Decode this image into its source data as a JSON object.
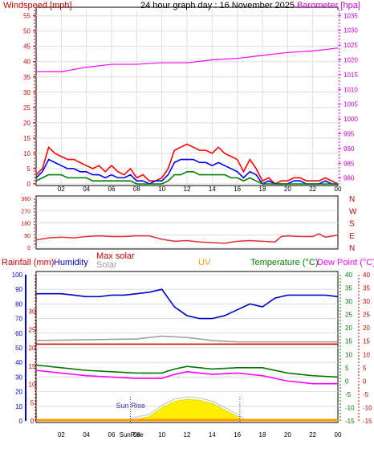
{
  "header": {
    "left": "Windspeed [mph]",
    "title": "24 hour graph day : 16 November 2025",
    "right": "Barometer [hpa]"
  },
  "colors": {
    "wind": "#ff0000",
    "gust": "#0000ff",
    "avg": "#008000",
    "baro": "#ff00ff",
    "dir": "#e03030",
    "humidity": "#0000cc",
    "rain": "#cc0000",
    "solar": "#a0a0a0",
    "uv": "#ff9900",
    "temp": "#007700",
    "dew": "#ff00ff",
    "maxsolar": "#c00000"
  },
  "legend2": {
    "rain": "Rainfall (mm)",
    "humidity": "Humidity",
    "maxsolar": "Max solar",
    "solar": "Solar",
    "uv": "UV",
    "temp": "Temperature (°C)",
    "dew": "Dew Point (°C)"
  },
  "dir_labels": [
    "N",
    "W",
    "S",
    "E",
    "N"
  ],
  "sunrise_label": "Sun Rise",
  "sunrise_bottom_label": "SunRise",
  "chart_data": [
    {
      "type": "line",
      "x_ticks": [
        "02",
        "04",
        "06",
        "08",
        "10",
        "12",
        "14",
        "16",
        "18",
        "20",
        "22",
        "00"
      ],
      "y_left_ticks": [
        0,
        5,
        10,
        15,
        20,
        25,
        30,
        35,
        40,
        45,
        50,
        55
      ],
      "y_left_lim": [
        0,
        57
      ],
      "y_right_ticks": [
        980,
        985,
        990,
        995,
        1000,
        1005,
        1010,
        1015,
        1020,
        1025,
        1030,
        1035
      ],
      "y_right_lim": [
        978,
        1037
      ],
      "series": [
        {
          "key": "baro",
          "x": [
            0,
            2,
            4,
            6,
            8,
            10,
            12,
            14,
            16,
            18,
            20,
            22,
            24
          ],
          "y": [
            1016,
            1016,
            1017.5,
            1018.5,
            1018.5,
            1019,
            1019,
            1020,
            1020.5,
            1021.5,
            1022.5,
            1023,
            1024
          ]
        },
        {
          "key": "wind",
          "x": [
            0,
            0.5,
            1,
            1.5,
            2,
            2.5,
            3,
            3.5,
            4,
            4.5,
            5,
            5.5,
            6,
            6.5,
            7,
            7.5,
            8,
            8.5,
            9,
            9.5,
            10,
            10.5,
            11,
            11.5,
            12,
            12.5,
            13,
            13.5,
            14,
            14.5,
            15,
            15.5,
            16,
            16.5,
            17,
            17.5,
            18,
            18.5,
            19,
            19.5,
            20,
            20.5,
            21,
            21.5,
            22,
            22.5,
            23,
            23.5,
            24
          ],
          "y": [
            3,
            5,
            12,
            10,
            9,
            8,
            8,
            7,
            6,
            5,
            6,
            4,
            6,
            4,
            3,
            5,
            2,
            3,
            1,
            1,
            2,
            5,
            11,
            12,
            13,
            12,
            11,
            11,
            10,
            12,
            10,
            9,
            8,
            4,
            8,
            5,
            1,
            2,
            0,
            1,
            1,
            2,
            2,
            1,
            1,
            1,
            2,
            1,
            0
          ]
        },
        {
          "key": "gust",
          "x": [
            0,
            0.5,
            1,
            1.5,
            2,
            2.5,
            3,
            3.5,
            4,
            4.5,
            5,
            5.5,
            6,
            6.5,
            7,
            7.5,
            8,
            8.5,
            9,
            9.5,
            10,
            10.5,
            11,
            11.5,
            12,
            12.5,
            13,
            13.5,
            14,
            14.5,
            15,
            15.5,
            16,
            16.5,
            17,
            17.5,
            18,
            18.5,
            19,
            19.5,
            20,
            20.5,
            21,
            21.5,
            22,
            22.5,
            23,
            23.5,
            24
          ],
          "y": [
            2,
            4,
            8,
            7,
            6,
            5,
            5,
            4,
            4,
            3,
            3,
            2,
            3,
            2,
            2,
            3,
            1,
            1,
            0,
            1,
            1,
            3,
            7,
            8,
            8,
            8,
            7,
            7,
            6,
            7,
            6,
            5,
            4,
            2,
            4,
            3,
            0,
            1,
            0,
            0,
            0,
            1,
            1,
            0,
            0,
            0,
            1,
            0,
            0
          ]
        },
        {
          "key": "avg",
          "x": [
            0,
            0.5,
            1,
            1.5,
            2,
            2.5,
            3,
            3.5,
            4,
            4.5,
            5,
            5.5,
            6,
            6.5,
            7,
            7.5,
            8,
            8.5,
            9,
            9.5,
            10,
            10.5,
            11,
            11.5,
            12,
            12.5,
            13,
            13.5,
            14,
            14.5,
            15,
            15.5,
            16,
            16.5,
            17,
            17.5,
            18,
            18.5,
            19,
            19.5,
            20,
            20.5,
            21,
            21.5,
            22,
            22.5,
            23,
            23.5,
            24
          ],
          "y": [
            1,
            2,
            3,
            3,
            3,
            2,
            2,
            2,
            2,
            1,
            1,
            1,
            1,
            1,
            1,
            1,
            0,
            0,
            0,
            0,
            0,
            1,
            3,
            3,
            4,
            4,
            3,
            3,
            3,
            3,
            3,
            2,
            2,
            1,
            2,
            1,
            0,
            0,
            0,
            0,
            0,
            0,
            0,
            0,
            0,
            0,
            0,
            0,
            0
          ]
        }
      ]
    },
    {
      "type": "line",
      "y_ticks": [
        0,
        90,
        180,
        270,
        360
      ],
      "y_lim": [
        0,
        360
      ],
      "series": [
        {
          "key": "dir",
          "x": [
            0,
            1,
            2,
            3,
            4,
            5,
            6,
            7,
            8,
            9,
            10,
            11,
            12,
            13,
            14,
            15,
            16,
            17,
            18,
            19,
            19.5,
            20,
            21,
            22,
            22.5,
            23,
            24
          ],
          "y": [
            55,
            70,
            75,
            70,
            80,
            85,
            80,
            80,
            85,
            85,
            60,
            45,
            50,
            40,
            35,
            30,
            45,
            50,
            45,
            40,
            80,
            85,
            80,
            80,
            100,
            75,
            90
          ]
        }
      ]
    },
    {
      "type": "line",
      "y_hum_ticks": [
        0,
        10,
        20,
        30,
        40,
        50,
        60,
        70,
        80,
        90,
        100
      ],
      "y_rain_ticks": [
        0,
        5,
        10,
        15,
        20,
        25,
        30
      ],
      "y_temp_ticks": [
        -15,
        -10,
        -5,
        0,
        5,
        10,
        15,
        20,
        25,
        30,
        35,
        40
      ],
      "y_temp_lim": [
        -15,
        40
      ],
      "series": [
        {
          "key": "humidity",
          "axis": "hum",
          "x": [
            0,
            1,
            2,
            3,
            4,
            5,
            6,
            7,
            8,
            9,
            10,
            11,
            12,
            13,
            14,
            15,
            16,
            17,
            18,
            19,
            20,
            21,
            22,
            23,
            24
          ],
          "y": [
            87,
            87,
            87,
            86,
            85,
            85,
            86,
            86,
            87,
            88,
            90,
            78,
            72,
            70,
            70,
            72,
            76,
            80,
            78,
            84,
            86,
            86,
            86,
            86,
            85
          ]
        },
        {
          "key": "rain",
          "axis": "rain",
          "x": [
            0,
            24
          ],
          "y": [
            21,
            21
          ]
        },
        {
          "key": "solar",
          "axis": "hum",
          "x": [
            0,
            8,
            9,
            10,
            12,
            14,
            16,
            18,
            20,
            22,
            24
          ],
          "y": [
            55,
            56,
            57,
            58,
            57,
            55,
            54,
            54,
            54,
            54,
            54
          ]
        },
        {
          "key": "temp",
          "axis": "temp",
          "x": [
            0,
            2,
            4,
            6,
            8,
            10,
            11,
            12,
            13,
            14,
            16,
            18,
            20,
            22,
            24
          ],
          "y": [
            6,
            5,
            4,
            3.5,
            3,
            3,
            4.5,
            5.5,
            5,
            4.5,
            5,
            5,
            3,
            2,
            1.5
          ]
        },
        {
          "key": "dew",
          "axis": "temp",
          "x": [
            0,
            2,
            4,
            6,
            8,
            10,
            11,
            12,
            13,
            14,
            16,
            18,
            20,
            22,
            24
          ],
          "y": [
            4,
            3,
            2,
            1.5,
            1,
            1,
            2.5,
            3.5,
            3,
            2.5,
            3,
            2,
            0,
            -1,
            -1
          ]
        }
      ]
    },
    {
      "type": "area",
      "y_ticks": [
        0,
        5,
        10,
        15,
        20,
        25,
        30,
        35,
        40
      ],
      "x_ticks": [
        "02",
        "04",
        "06",
        "08",
        "10",
        "12",
        "14",
        "16",
        "18",
        "20",
        "22",
        "00"
      ],
      "series": [
        {
          "key": "solar_area",
          "x": [
            7.5,
            9,
            10,
            11,
            12,
            13,
            14,
            15,
            16,
            16.5
          ],
          "y": [
            0,
            4,
            12,
            18,
            20,
            19,
            16,
            10,
            4,
            0
          ]
        }
      ]
    }
  ]
}
